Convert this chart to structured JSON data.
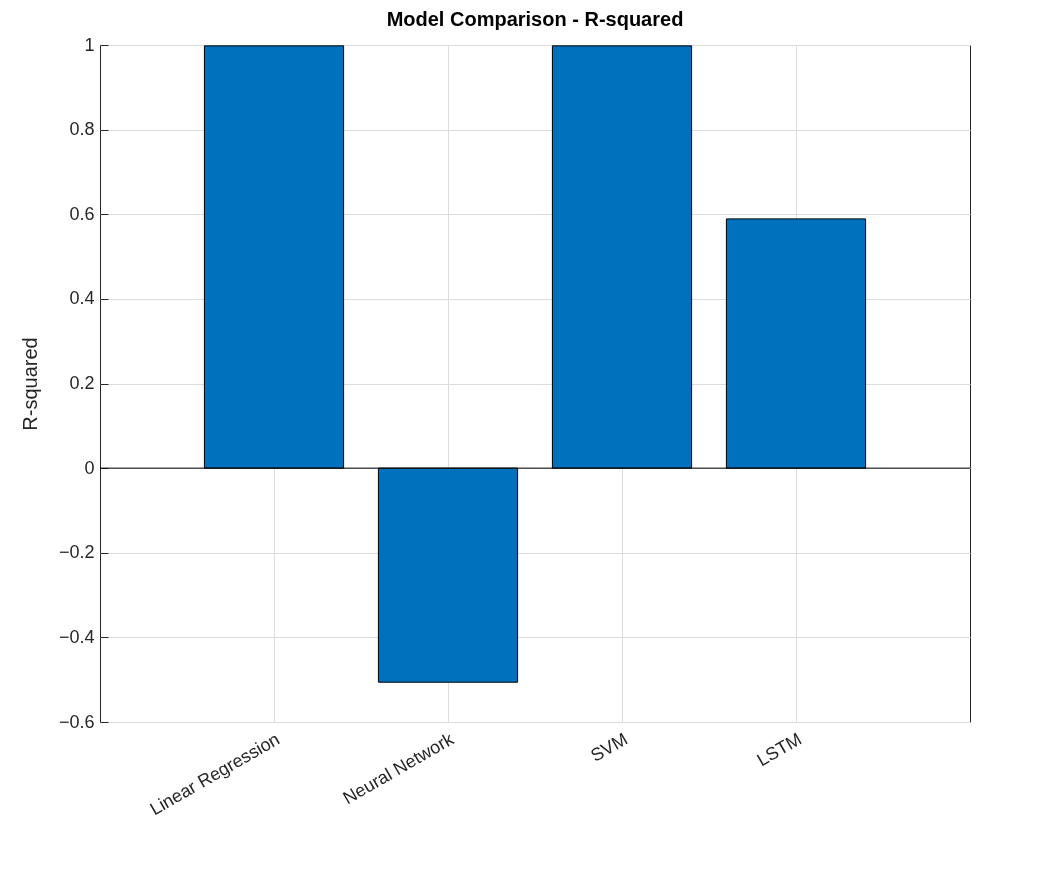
{
  "chart_data": {
    "type": "bar",
    "title": "Model Comparison - R-squared",
    "ylabel": "R-squared",
    "categories": [
      "Linear Regression",
      "Neural Network",
      "SVM",
      "LSTM"
    ],
    "values": [
      0.998,
      -0.506,
      0.998,
      0.589
    ],
    "color": "#0072bd",
    "ylim": [
      -0.6,
      1
    ],
    "yticks": [
      -0.6,
      -0.4,
      -0.2,
      0,
      0.2,
      0.4,
      0.6,
      0.8,
      1
    ],
    "grid": true
  }
}
